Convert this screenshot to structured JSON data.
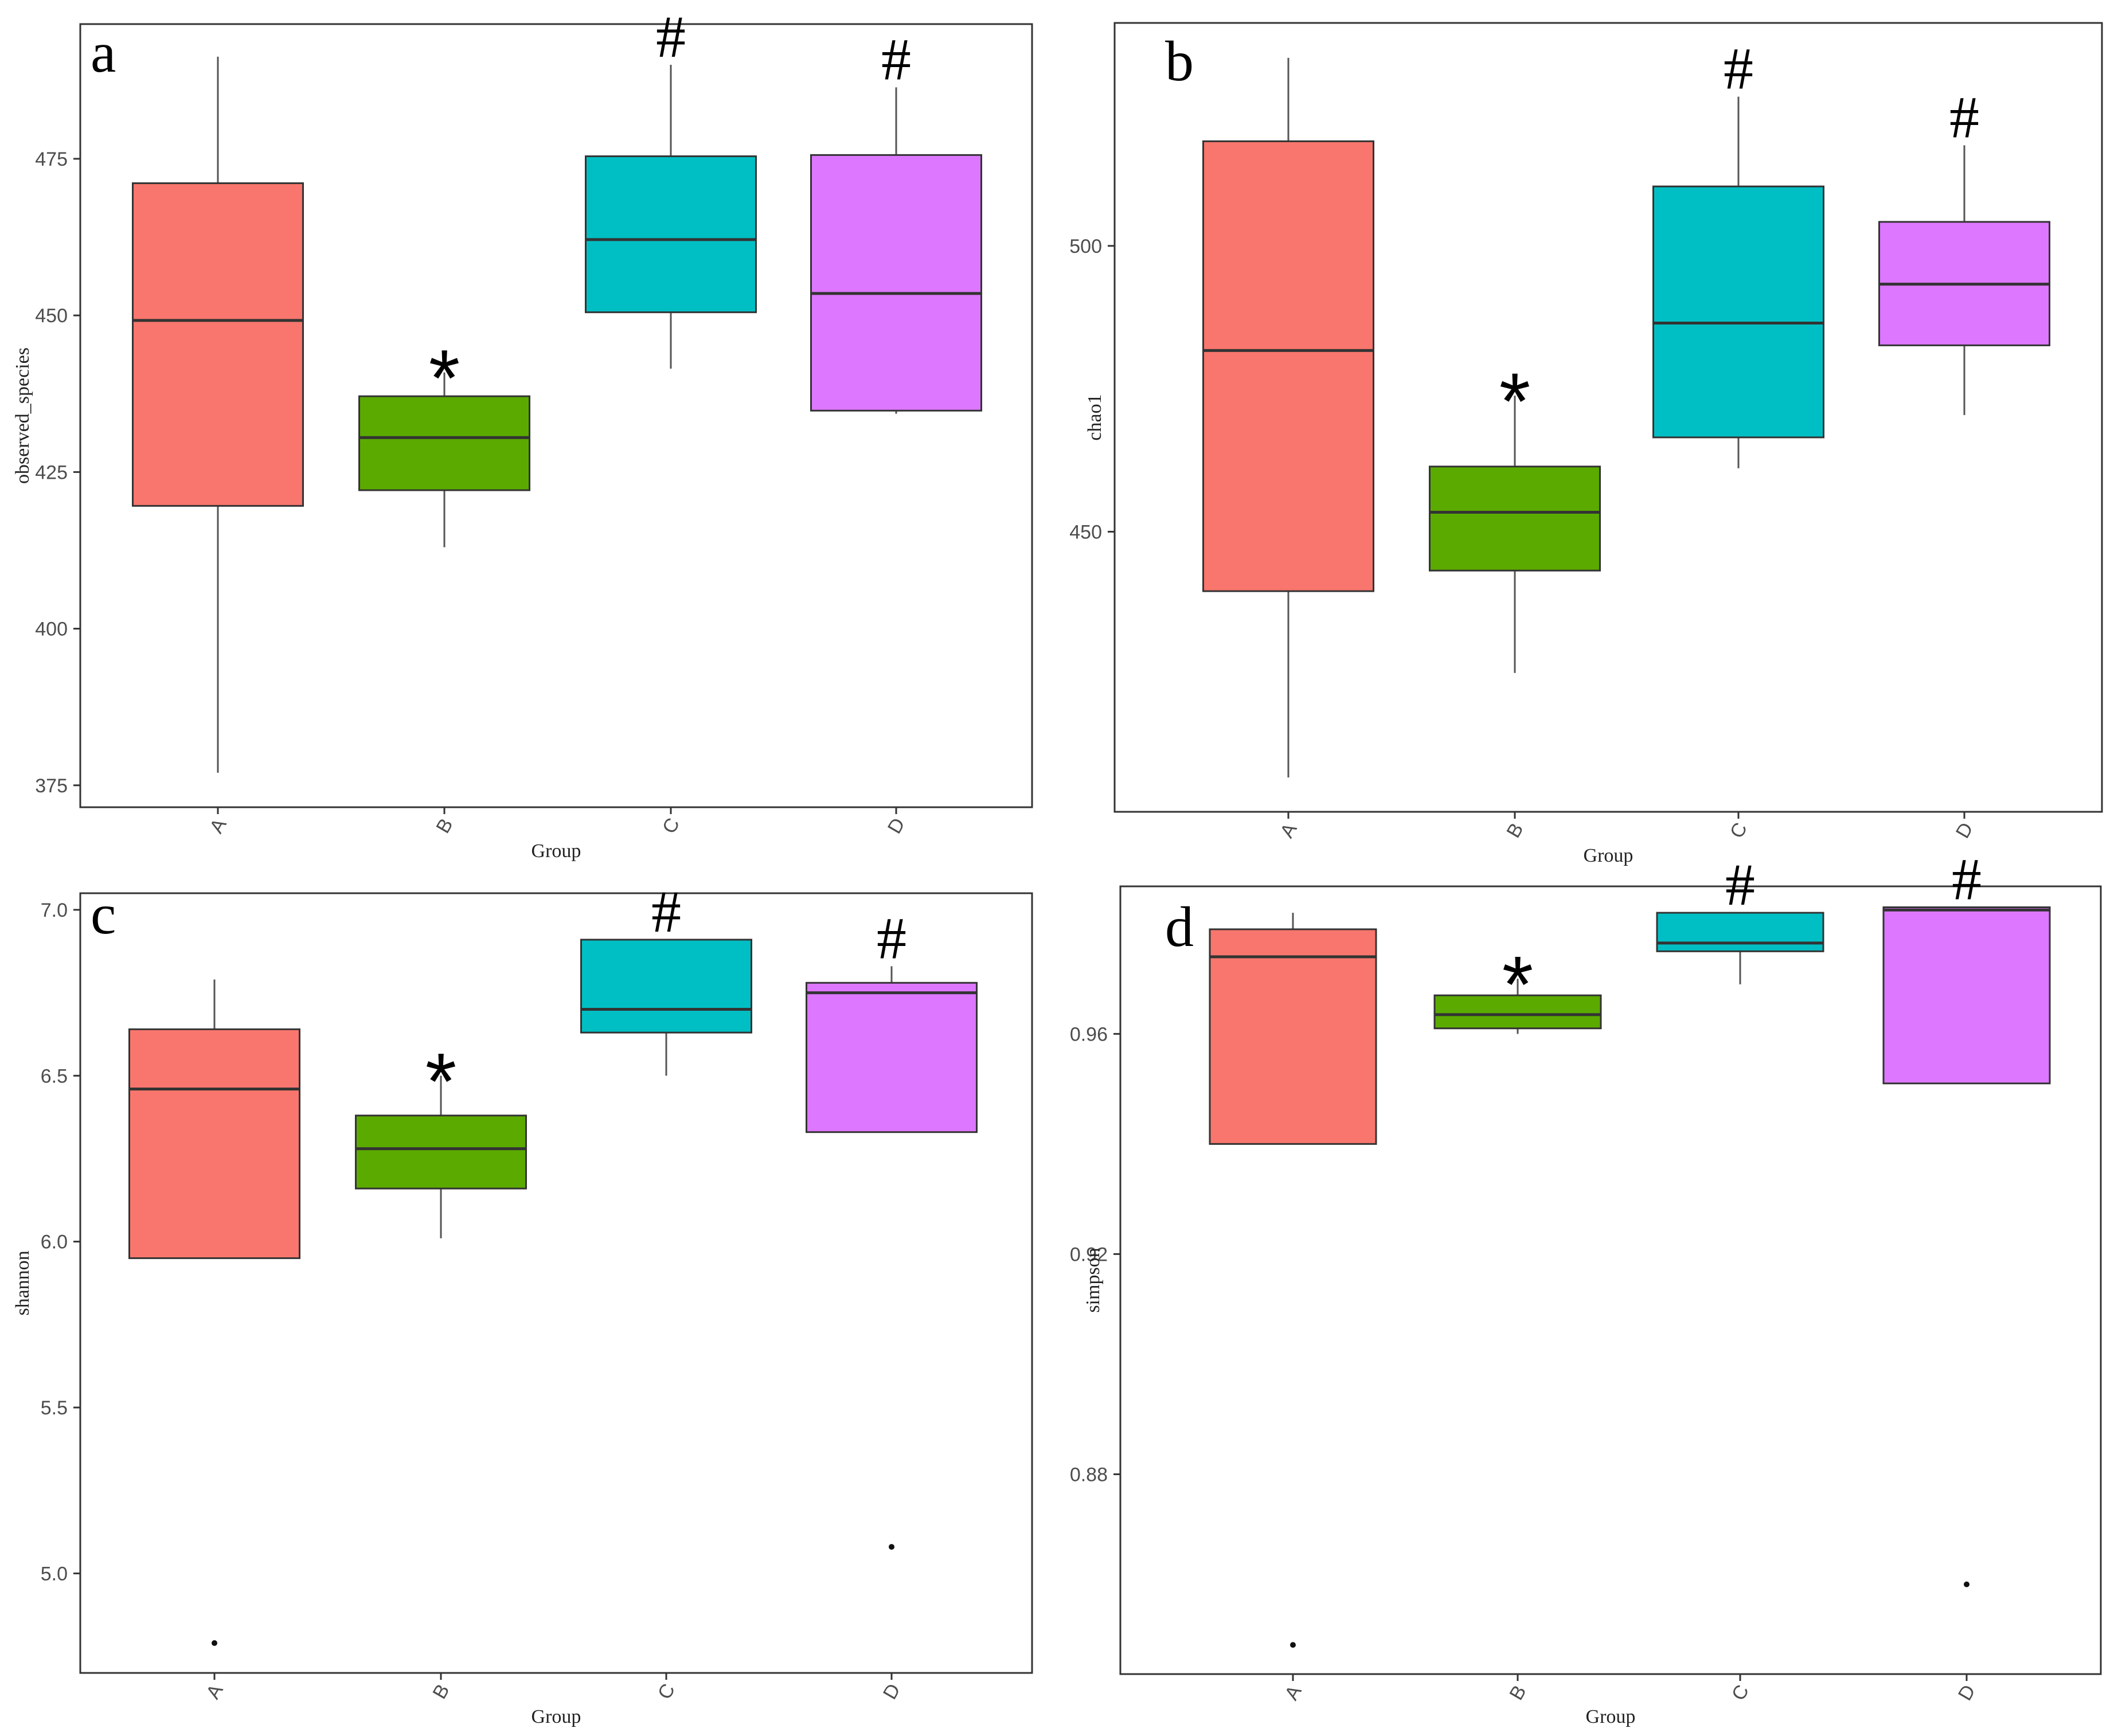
{
  "colors": {
    "A": "#F8766D",
    "B": "#5BAA00",
    "C": "#00BFC4",
    "D": "#DD77FF",
    "frame": "#333333",
    "median": "#333333",
    "whisker": "#555555"
  },
  "chart_data": [
    {
      "type": "boxplot",
      "panel_label": "a",
      "xlabel": "Group",
      "ylabel": "observed_species",
      "categories": [
        "A",
        "B",
        "C",
        "D"
      ],
      "ylim": [
        371.5,
        496.5
      ],
      "yticks": [
        375,
        400,
        425,
        450,
        475
      ],
      "yticklabels": [
        "375",
        "400",
        "425",
        "450",
        "475"
      ],
      "boxes": [
        {
          "group": "A",
          "whisker_low": 377,
          "q1": 419.6,
          "median": 449.2,
          "q3": 471.1,
          "whisker_high": 491.3,
          "outliers": [],
          "annotation": ""
        },
        {
          "group": "B",
          "whisker_low": 413,
          "q1": 422.1,
          "median": 430.5,
          "q3": 437.1,
          "whisker_high": 440.9,
          "outliers": [],
          "annotation": "*"
        },
        {
          "group": "C",
          "whisker_low": 441.5,
          "q1": 450.5,
          "median": 462.1,
          "q3": 475.4,
          "whisker_high": 490,
          "outliers": [],
          "annotation": "#"
        },
        {
          "group": "D",
          "whisker_low": 434.3,
          "q1": 434.8,
          "median": 453.5,
          "q3": 475.6,
          "whisker_high": 486.4,
          "outliers": [],
          "annotation": "#"
        }
      ]
    },
    {
      "type": "boxplot",
      "panel_label": "b",
      "xlabel": "Group",
      "ylabel": "chao1",
      "categories": [
        "A",
        "B",
        "C",
        "D"
      ],
      "ylim": [
        401,
        539
      ],
      "yticks": [
        450,
        500
      ],
      "yticklabels": [
        "450",
        "500"
      ],
      "boxes": [
        {
          "group": "A",
          "whisker_low": 407,
          "q1": 439.6,
          "median": 481.7,
          "q3": 518.3,
          "whisker_high": 532.9,
          "outliers": [],
          "annotation": ""
        },
        {
          "group": "B",
          "whisker_low": 425.3,
          "q1": 443.2,
          "median": 453.4,
          "q3": 461.4,
          "whisker_high": 473.8,
          "outliers": [],
          "annotation": "*"
        },
        {
          "group": "C",
          "whisker_low": 461.1,
          "q1": 466.5,
          "median": 486.5,
          "q3": 510.4,
          "whisker_high": 526.1,
          "outliers": [],
          "annotation": "#"
        },
        {
          "group": "D",
          "whisker_low": 470.4,
          "q1": 482.6,
          "median": 493.3,
          "q3": 504.2,
          "whisker_high": 517.6,
          "outliers": [],
          "annotation": "#"
        }
      ]
    },
    {
      "type": "boxplot",
      "panel_label": "c",
      "xlabel": "Group",
      "ylabel": "shannon",
      "categories": [
        "A",
        "B",
        "C",
        "D"
      ],
      "ylim": [
        4.7,
        7.05
      ],
      "yticks": [
        5.0,
        5.5,
        6.0,
        6.5,
        7.0
      ],
      "yticklabels": [
        "5.0",
        "5.5",
        "6.0",
        "6.5",
        "7.0"
      ],
      "boxes": [
        {
          "group": "A",
          "whisker_low": 5.95,
          "q1": 5.95,
          "median": 6.46,
          "q3": 6.64,
          "whisker_high": 6.79,
          "outliers": [
            4.79
          ],
          "annotation": ""
        },
        {
          "group": "B",
          "whisker_low": 6.01,
          "q1": 6.16,
          "median": 6.28,
          "q3": 6.38,
          "whisker_high": 6.5,
          "outliers": [],
          "annotation": "*"
        },
        {
          "group": "C",
          "whisker_low": 6.5,
          "q1": 6.63,
          "median": 6.7,
          "q3": 6.91,
          "whisker_high": 6.91,
          "outliers": [],
          "annotation": "#"
        },
        {
          "group": "D",
          "whisker_low": 6.33,
          "q1": 6.33,
          "median": 6.75,
          "q3": 6.78,
          "whisker_high": 6.83,
          "outliers": [
            5.08
          ],
          "annotation": "#"
        }
      ]
    },
    {
      "type": "boxplot",
      "panel_label": "d",
      "xlabel": "Group",
      "ylabel": "simpson",
      "categories": [
        "A",
        "B",
        "C",
        "D"
      ],
      "ylim": [
        0.8437,
        0.9868
      ],
      "yticks": [
        0.88,
        0.92,
        0.96
      ],
      "yticklabels": [
        "0.88",
        "0.92",
        "0.96"
      ],
      "boxes": [
        {
          "group": "A",
          "whisker_low": 0.94,
          "q1": 0.94,
          "median": 0.974,
          "q3": 0.979,
          "whisker_high": 0.982,
          "outliers": [
            0.849
          ],
          "annotation": ""
        },
        {
          "group": "B",
          "whisker_low": 0.96,
          "q1": 0.961,
          "median": 0.9635,
          "q3": 0.967,
          "whisker_high": 0.97,
          "outliers": [],
          "annotation": "*"
        },
        {
          "group": "C",
          "whisker_low": 0.969,
          "q1": 0.975,
          "median": 0.9765,
          "q3": 0.982,
          "whisker_high": 0.982,
          "outliers": [],
          "annotation": "#"
        },
        {
          "group": "D",
          "whisker_low": 0.951,
          "q1": 0.951,
          "median": 0.9825,
          "q3": 0.983,
          "whisker_high": 0.983,
          "outliers": [
            0.86
          ],
          "annotation": "#"
        }
      ]
    }
  ]
}
